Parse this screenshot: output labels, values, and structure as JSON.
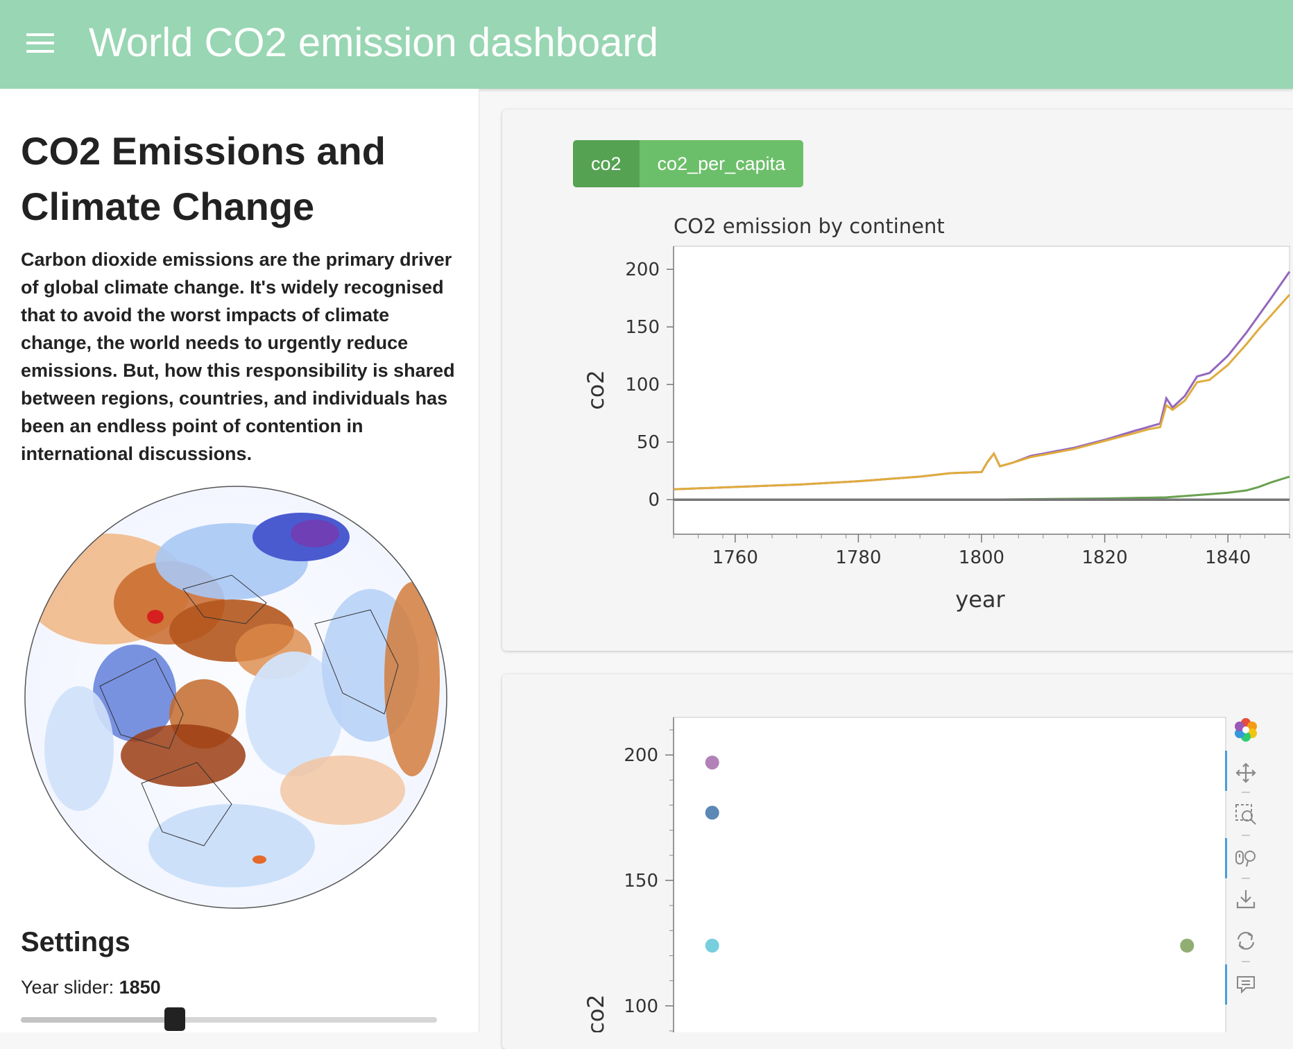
{
  "header": {
    "title": "World CO2 emission dashboard",
    "menu_icon": "hamburger-menu-icon"
  },
  "sidebar": {
    "title": "CO2 Emissions and Climate Change",
    "description": "Carbon dioxide emissions are the primary driver of global climate change. It's widely recognised that to avoid the worst impacts of climate change, the world needs to urgently reduce emissions. But, how this responsibility is shared between regions, countries, and individuals has been an endless point of contention in international discussions.",
    "settings_title": "Settings",
    "year_slider": {
      "label": "Year slider:",
      "value": "1850",
      "min": 1750,
      "max": 2020,
      "year": 1850
    }
  },
  "tabs": [
    {
      "label": "co2",
      "active": true
    },
    {
      "label": "co2_per_capita",
      "active": false
    }
  ],
  "toolbar": {
    "icons": [
      "bokeh-logo-icon",
      "pan-icon",
      "box-zoom-icon",
      "wheel-zoom-icon",
      "save-icon",
      "reset-icon",
      "hover-icon"
    ],
    "accent": "#4a9fd5"
  },
  "chart_data": [
    {
      "type": "line",
      "title": "CO2 emission by continent",
      "xlabel": "year",
      "ylabel": "co2",
      "xlim": [
        1750,
        1850
      ],
      "ylim": [
        -30,
        220
      ],
      "x_ticks": [
        1760,
        1780,
        1800,
        1820,
        1840
      ],
      "y_ticks": [
        0,
        50,
        100,
        150,
        200
      ],
      "x_tick_labels": [
        "1760",
        "1780",
        "1800",
        "1820",
        "1840"
      ],
      "y_tick_labels": [
        "0",
        "50",
        "100",
        "150",
        "200"
      ],
      "series": [
        {
          "color": "#9467bd",
          "x": [
            1750,
            1760,
            1770,
            1780,
            1790,
            1795,
            1800,
            1801,
            1802,
            1803,
            1805,
            1808,
            1810,
            1815,
            1820,
            1825,
            1827,
            1829,
            1830,
            1831,
            1833,
            1835,
            1837,
            1840,
            1843,
            1845,
            1847,
            1850
          ],
          "y": [
            9,
            11,
            13,
            16,
            20,
            23,
            24,
            33,
            40,
            29,
            32,
            38,
            40,
            45,
            52,
            60,
            63,
            66,
            88,
            80,
            90,
            107,
            110,
            125,
            145,
            160,
            175,
            198
          ]
        },
        {
          "color": "#e0ac3c",
          "x": [
            1750,
            1760,
            1770,
            1780,
            1790,
            1795,
            1800,
            1801,
            1802,
            1803,
            1805,
            1808,
            1810,
            1815,
            1820,
            1825,
            1827,
            1829,
            1830,
            1831,
            1833,
            1835,
            1837,
            1840,
            1843,
            1845,
            1847,
            1850
          ],
          "y": [
            9,
            11,
            13,
            16,
            20,
            23,
            24,
            33,
            40,
            29,
            32,
            37,
            39,
            44,
            51,
            58,
            61,
            63,
            82,
            78,
            86,
            102,
            104,
            117,
            135,
            148,
            160,
            178
          ]
        },
        {
          "color": "#6aa150",
          "x": [
            1750,
            1800,
            1820,
            1830,
            1835,
            1840,
            1843,
            1845,
            1847,
            1850
          ],
          "y": [
            0,
            0,
            1,
            2,
            4,
            6,
            8,
            11,
            15,
            20
          ]
        },
        {
          "color": "#777777",
          "x": [
            1750,
            1850
          ],
          "y": [
            0,
            0
          ]
        }
      ]
    },
    {
      "type": "scatter",
      "xlabel": "",
      "ylabel": "co2",
      "ylim": [
        85,
        215
      ],
      "xlim": [
        0,
        10
      ],
      "y_ticks": [
        100,
        150,
        200
      ],
      "y_tick_labels": [
        "100",
        "150",
        "200"
      ],
      "series": [
        {
          "color": "#a56bab",
          "x": [
            0.7
          ],
          "y": [
            197
          ]
        },
        {
          "color": "#3e73a8",
          "x": [
            0.7
          ],
          "y": [
            177
          ]
        },
        {
          "color": "#5fc6d6",
          "x": [
            0.7
          ],
          "y": [
            124
          ]
        },
        {
          "color": "#7e9f5a",
          "x": [
            9.3
          ],
          "y": [
            124
          ]
        }
      ]
    }
  ]
}
